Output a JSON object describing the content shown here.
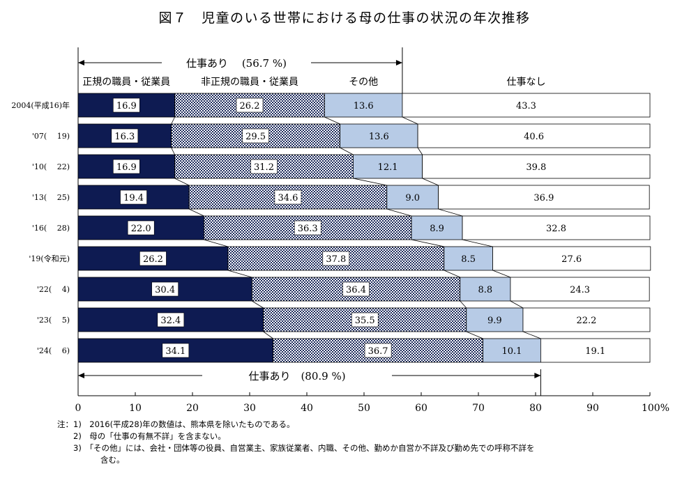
{
  "chart_data": {
    "type": "bar",
    "orientation": "horizontal",
    "stacked": true,
    "title": "図７　児童のいる世帯における母の仕事の状況の年次推移",
    "categories": [
      "2004(平成16)年",
      "'07(　 19)",
      "'10(　 22)",
      "'13(　 25)",
      "'16(　 28)",
      "'19(令和元)",
      "'22(　 4)",
      "'23(　 5)",
      "'24(　 6)"
    ],
    "series": [
      {
        "name": "正規の職員・従業員",
        "values": [
          16.9,
          16.3,
          16.9,
          19.4,
          22.0,
          26.2,
          30.4,
          32.4,
          34.1
        ],
        "color": "#0e1b52",
        "pattern": "solid"
      },
      {
        "name": "非正規の職員・従業員",
        "values": [
          26.2,
          29.5,
          31.2,
          34.6,
          36.3,
          37.8,
          36.4,
          35.5,
          36.7
        ],
        "color": "#1c2a5c",
        "pattern": "checker"
      },
      {
        "name": "その他",
        "values": [
          13.6,
          13.6,
          12.1,
          9.0,
          8.9,
          8.5,
          8.8,
          9.9,
          10.1
        ],
        "color": "#b7cbe6",
        "pattern": "solid"
      },
      {
        "name": "仕事なし",
        "values": [
          43.3,
          40.6,
          39.8,
          36.9,
          32.8,
          27.6,
          24.3,
          22.2,
          19.1
        ],
        "color": "#ffffff",
        "pattern": "solid"
      }
    ],
    "xlim": [
      0,
      100
    ],
    "xticks": [
      "0",
      "10",
      "20",
      "30",
      "40",
      "50",
      "60",
      "70",
      "80",
      "90",
      "100%"
    ],
    "annotations": {
      "top_range": {
        "label": "仕事あり　 (56.7 %)",
        "value": 56.7
      },
      "bottom_range": {
        "label": "仕事あり　(80.9 %)",
        "value": 80.9
      }
    },
    "legend": "above-bars"
  },
  "notes": [
    {
      "text": "注：1)　2016(平成28)年の数値は、熊本県を除いたものである。"
    },
    {
      "text": "　　2)　母の「仕事の有無不詳」を含まない。"
    },
    {
      "text": "　　3)　「その他」には、会社・団体等の役員、自営業主、家族従業者、内職、その他、勤めか自営か不詳及び勤め先での呼称不詳を"
    },
    {
      "text": "含む。"
    }
  ]
}
